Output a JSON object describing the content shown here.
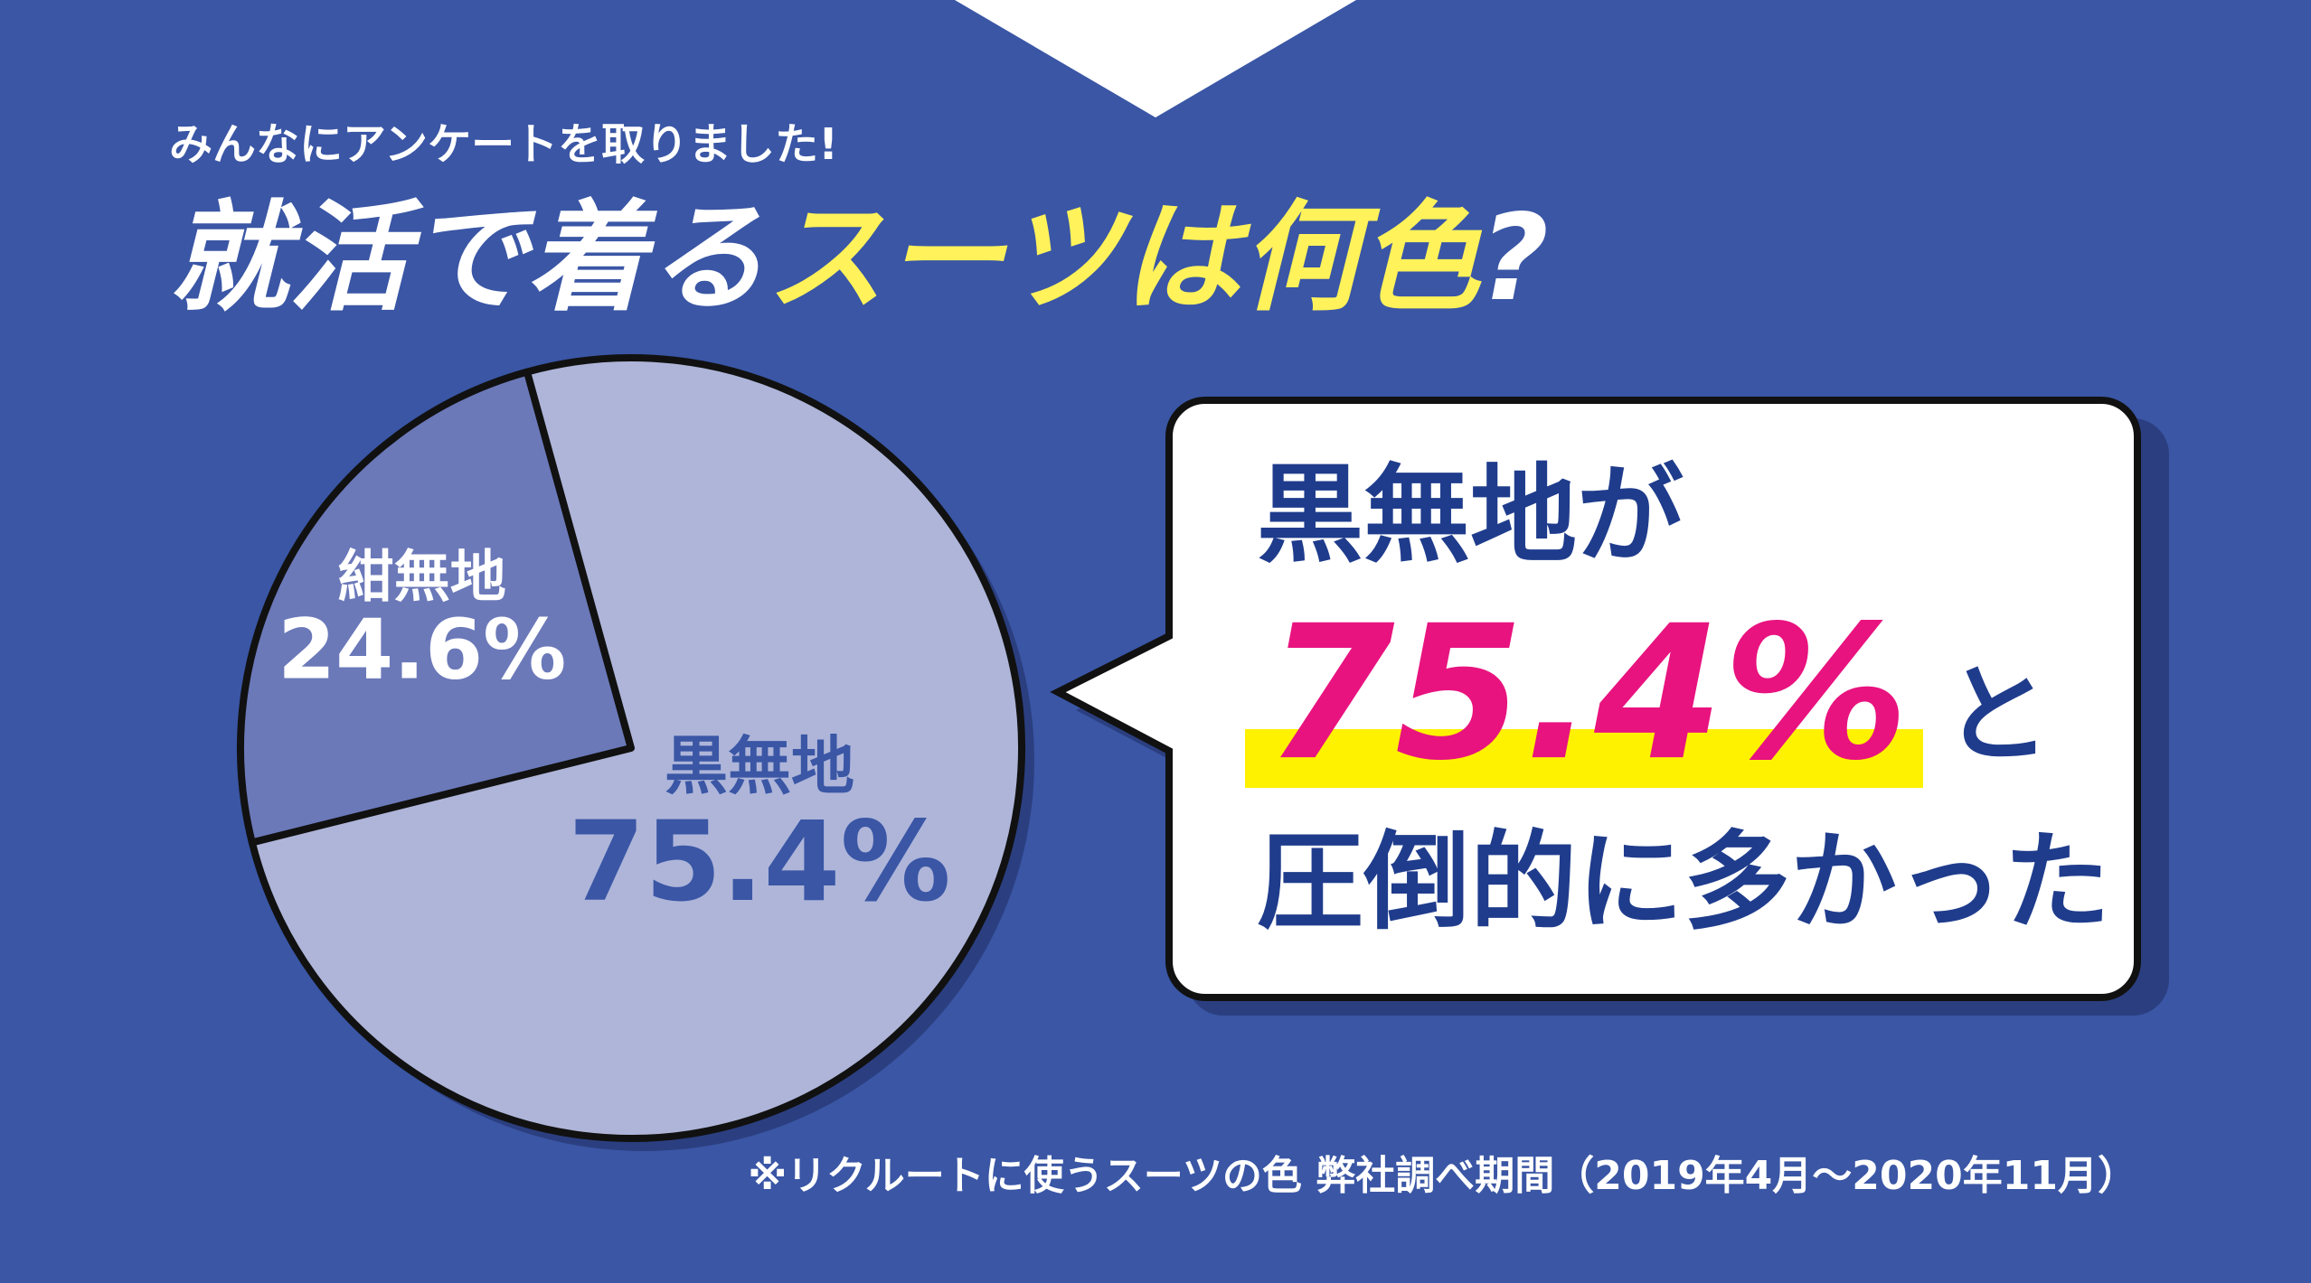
{
  "subtitle": "みんなにアンケートを取りました!",
  "title_parts": [
    "就活で着る",
    "スーツは何色",
    "?"
  ],
  "chart_data": {
    "type": "pie",
    "categories": [
      "紺無地",
      "黒無地"
    ],
    "values": [
      24.6,
      75.4
    ],
    "value_labels": [
      "24.6%",
      "75.4%"
    ],
    "colors": [
      "#6b79b9",
      "#aeb5d9"
    ]
  },
  "callout": {
    "line1": "黒無地が",
    "highlight": "75.4%",
    "after": "と",
    "line3": "圧倒的に多かった"
  },
  "footnote": "※リクルートに使うスーツの色 弊社調べ期間（2019年4月～2020年11月）"
}
